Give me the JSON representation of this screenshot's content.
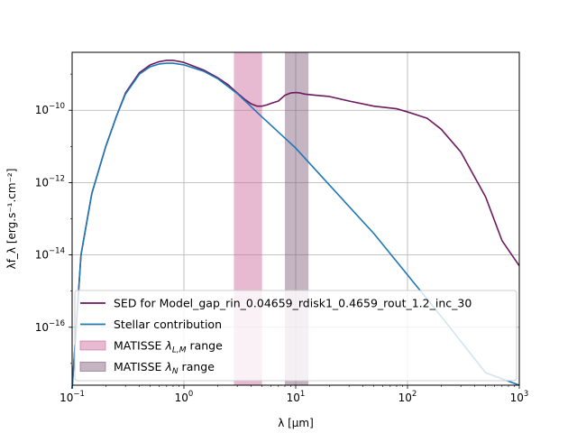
{
  "chart_data": {
    "type": "line",
    "xscale": "log",
    "yscale": "log",
    "xlim": [
      0.1,
      1000
    ],
    "ylim": [
      2.5e-18,
      4e-09
    ],
    "grid": true,
    "xlabel": "λ [μm]",
    "ylabel": "λf_λ [erg.s⁻¹.cm⁻²]",
    "xticks": [
      {
        "value": 0.1,
        "base": "10",
        "exp": "−1"
      },
      {
        "value": 1,
        "base": "10",
        "exp": "0"
      },
      {
        "value": 10,
        "base": "10",
        "exp": "1"
      },
      {
        "value": 100,
        "base": "10",
        "exp": "2"
      },
      {
        "value": 1000,
        "base": "10",
        "exp": "3"
      }
    ],
    "yticks": [
      {
        "value": 1e-16,
        "base": "10",
        "exp": "−16"
      },
      {
        "value": 1e-14,
        "base": "10",
        "exp": "−14"
      },
      {
        "value": 1e-12,
        "base": "10",
        "exp": "−12"
      },
      {
        "value": 1e-10,
        "base": "10",
        "exp": "−10"
      }
    ],
    "bands": [
      {
        "name": "MATISSE λL,M range",
        "x0": 2.8,
        "x1": 5.0,
        "color": "#c9679a",
        "opacity": 0.45
      },
      {
        "name": "MATISSE λN range",
        "x0": 8.0,
        "x1": 13.0,
        "color": "#7e5a7a",
        "opacity": 0.45
      }
    ],
    "series": [
      {
        "name": "SED for Model_gap_rin_0.04659_rdisk1_0.4659_rout_1.2_inc_30",
        "color": "#6b1a5e",
        "x": [
          0.1,
          0.12,
          0.15,
          0.2,
          0.25,
          0.3,
          0.4,
          0.5,
          0.6,
          0.7,
          0.8,
          1.0,
          1.5,
          2.0,
          2.5,
          3.0,
          3.5,
          4.0,
          4.5,
          5.0,
          5.5,
          6.0,
          7.0,
          8.0,
          9.0,
          10,
          11,
          12,
          15,
          20,
          30,
          50,
          80,
          100,
          150,
          200,
          300,
          500,
          700,
          1000
        ],
        "y": [
          2e-18,
          1e-14,
          5e-13,
          1e-11,
          7e-11,
          3e-10,
          1.1e-09,
          1.8e-09,
          2.2e-09,
          2.4e-09,
          2.4e-09,
          2.1e-09,
          1.3e-09,
          8e-10,
          5e-10,
          3e-10,
          2e-10,
          1.5e-10,
          1.3e-10,
          1.3e-10,
          1.4e-10,
          1.55e-10,
          1.8e-10,
          2.6e-10,
          3e-10,
          3.1e-10,
          3e-10,
          2.8e-10,
          2.6e-10,
          2.4e-10,
          1.8e-10,
          1.3e-10,
          1.1e-10,
          9e-11,
          6e-11,
          3e-11,
          7e-12,
          4e-13,
          2.5e-14,
          5e-15
        ]
      },
      {
        "name": "Stellar contribution",
        "color": "#1f77b4",
        "x": [
          0.1,
          0.12,
          0.15,
          0.2,
          0.25,
          0.3,
          0.4,
          0.5,
          0.6,
          0.7,
          0.8,
          1.0,
          1.5,
          2.0,
          3.0,
          5.0,
          8.0,
          10,
          20,
          50,
          100,
          200,
          500,
          1000
        ],
        "y": [
          2e-18,
          1e-14,
          5e-13,
          1e-11,
          7e-11,
          2.8e-10,
          1e-09,
          1.6e-09,
          1.9e-09,
          2e-09,
          2e-09,
          1.8e-09,
          1.2e-09,
          7.5e-10,
          2.9e-10,
          6.5e-11,
          1.7e-11,
          9e-12,
          8.6e-13,
          3.9e-14,
          2.8e-15,
          2e-16,
          5.5e-18,
          2.5e-18
        ]
      }
    ],
    "legend": {
      "placement": "lower-right",
      "entries": [
        {
          "type": "line",
          "label": "SED for Model_gap_rin_0.04659_rdisk1_0.4659_rout_1.2_inc_30",
          "color": "#6b1a5e"
        },
        {
          "type": "line",
          "label": "Stellar contribution",
          "color": "#1f77b4"
        },
        {
          "type": "patch",
          "label_prefix": "MATISSE ",
          "label_math": "λ",
          "label_sub": "L,M",
          "label_suffix": " range",
          "color": "#c9679a"
        },
        {
          "type": "patch",
          "label_prefix": "MATISSE ",
          "label_math": "λ",
          "label_sub": "N",
          "label_suffix": " range",
          "color": "#7e5a7a"
        }
      ]
    }
  }
}
